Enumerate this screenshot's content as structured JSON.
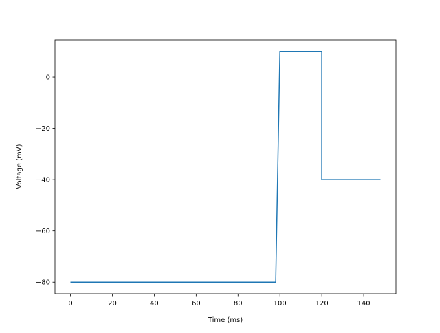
{
  "chart_data": {
    "type": "line",
    "title": "",
    "xlabel": "Time (ms)",
    "ylabel": "Voltage (mV)",
    "xlim": [
      -7.4,
      155.4
    ],
    "ylim": [
      -84.5,
      14.5
    ],
    "xticks": [
      0,
      20,
      40,
      60,
      80,
      100,
      120,
      140
    ],
    "yticks": [
      -80,
      -60,
      -40,
      -20,
      0
    ],
    "grid": false,
    "series": [
      {
        "color": "#1f77b4",
        "x": [
          0,
          98,
          100,
          120,
          120,
          148
        ],
        "y": [
          -80,
          -80,
          10,
          10,
          -40,
          -40
        ]
      }
    ]
  }
}
